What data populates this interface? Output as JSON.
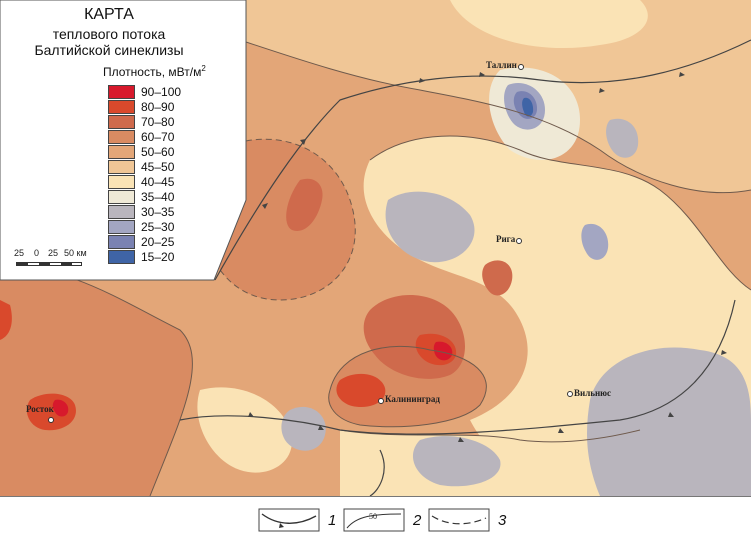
{
  "title": {
    "line1": "КАРТА",
    "line2": "теплового потока",
    "line3": "Балтийской синеклизы"
  },
  "density": {
    "label": "Плотность, мВт/м",
    "unit_superscript": "2"
  },
  "legend_classes": [
    {
      "range": "90–100",
      "color": "#d7192c"
    },
    {
      "range": "80–90",
      "color": "#d9492c"
    },
    {
      "range": "70–80",
      "color": "#cf6a4c"
    },
    {
      "range": "60–70",
      "color": "#d98b62"
    },
    {
      "range": "50–60",
      "color": "#e3a678"
    },
    {
      "range": "45–50",
      "color": "#f0c696"
    },
    {
      "range": "40–45",
      "color": "#fae3b5"
    },
    {
      "range": "35–40",
      "color": "#efe9d6"
    },
    {
      "range": "30–35",
      "color": "#b9b5bd"
    },
    {
      "range": "25–30",
      "color": "#a3a6c2"
    },
    {
      "range": "20–25",
      "color": "#7a82b2"
    },
    {
      "range": "15–20",
      "color": "#3f64a6"
    }
  ],
  "scale": {
    "ticks": [
      "25",
      "0",
      "25",
      "50 км"
    ]
  },
  "cities": [
    {
      "name": "Таллин"
    },
    {
      "name": "Рига"
    },
    {
      "name": "Калининград"
    },
    {
      "name": "Вильнюс"
    },
    {
      "name": "Росток"
    }
  ],
  "key": {
    "items": [
      {
        "number": "1",
        "sample_label": ""
      },
      {
        "number": "2",
        "sample_label": "50"
      },
      {
        "number": "3",
        "sample_label": ""
      }
    ]
  }
}
